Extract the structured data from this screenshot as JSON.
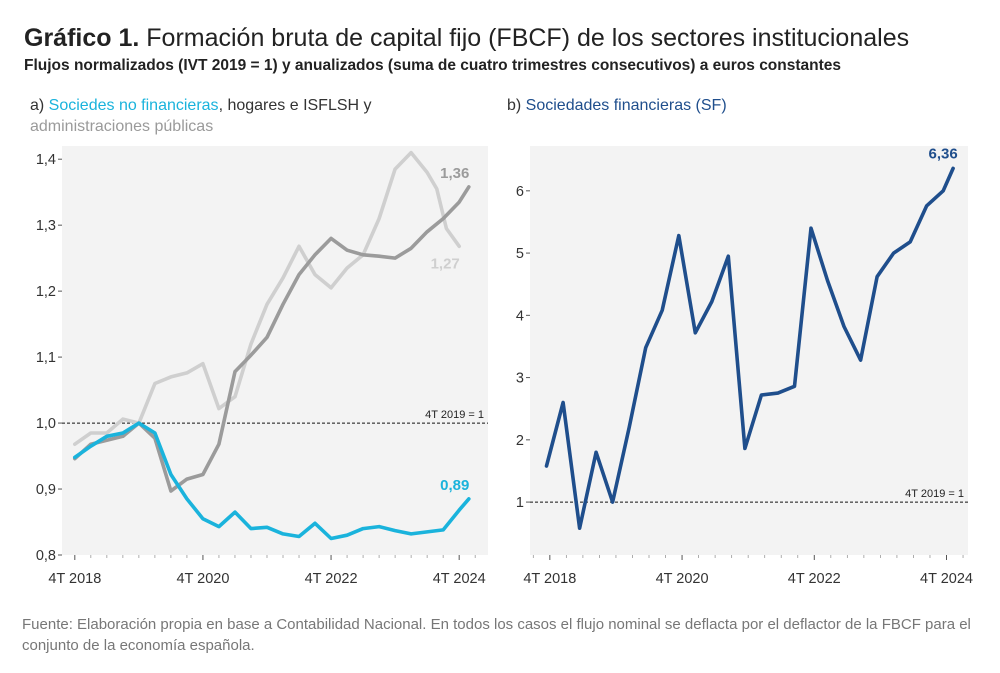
{
  "header": {
    "title_bold": "Gráfico 1.",
    "title_rest": " Formación bruta de capital fijo (FBCF) de los sectores institucionales",
    "subtitle": "Flujos normalizados (IVT 2019 = 1) y anualizados (suma de cuatro trimestres consecutivos) a euros constantes"
  },
  "panel_a": {
    "prefix": "a) ",
    "series_label_1": "Sociedes no financieras",
    "mid": ", hogares e ISFLSH y",
    "series_label_3": "administraciones públicas"
  },
  "panel_b": {
    "prefix": "b) ",
    "series_label": "Sociedades financieras (SF)"
  },
  "source": "Fuente: Elaboración propia en base a Contabilidad Nacional. En todos los casos el flujo nominal se deflacta por el deflactor de la FBCF para el conjunto de la economía española.",
  "colors": {
    "snf": "#1ab3dc",
    "hogares": "#9b9b9b",
    "aapp": "#cfcfcf",
    "sf": "#1f4e8c",
    "panel_bg": "#f3f3f3"
  },
  "chart_data": [
    {
      "type": "line",
      "id": "a",
      "ylim": [
        0.8,
        1.42
      ],
      "yticks": [
        0.8,
        0.9,
        1.0,
        1.1,
        1.2,
        1.3,
        1.4
      ],
      "ytick_labels": [
        "0,8",
        "0,9",
        "1,0",
        "1,1",
        "1,2",
        "1,3",
        "1,4"
      ],
      "xlim": [
        -0.8,
        25.8
      ],
      "xticks": [
        0,
        8,
        16,
        24
      ],
      "xtick_labels": [
        "4T 2018",
        "4T 2020",
        "4T 2022",
        "4T 2024"
      ],
      "x": [
        0,
        1,
        2,
        3,
        4,
        5,
        6,
        7,
        8,
        9,
        10,
        11,
        12,
        13,
        14,
        15,
        16,
        17,
        18,
        19,
        20,
        21,
        22,
        23,
        24
      ],
      "reference": {
        "y": 1.0,
        "label": "4T 2019 = 1"
      },
      "series": [
        {
          "name": "administraciones públicas",
          "color_key": "aapp",
          "values": [
            0.968,
            0.985,
            0.985,
            1.006,
            1.0,
            1.06,
            1.07,
            1.076,
            1.09,
            1.022,
            1.04,
            1.12,
            1.18,
            1.22,
            1.268,
            1.225,
            1.205,
            1.235,
            1.255,
            1.31,
            1.385,
            1.41,
            1.38,
            1.355,
            1.295,
            1.268
          ],
          "x": [
            0,
            1,
            2,
            3,
            4,
            5,
            6,
            7,
            8,
            9,
            10,
            11,
            12,
            13,
            14,
            15,
            16,
            17,
            18,
            19,
            20,
            21,
            22,
            22.6,
            23.2,
            24
          ],
          "end_label": "1,27"
        },
        {
          "name": "hogares e ISFLSH",
          "color_key": "hogares",
          "values": [
            0.946,
            0.968,
            0.974,
            0.98,
            1.0,
            0.977,
            0.897,
            0.915,
            0.922,
            0.968,
            1.078,
            1.103,
            1.13,
            1.18,
            1.225,
            1.255,
            1.28,
            1.262,
            1.255,
            1.253,
            1.25,
            1.265,
            1.29,
            1.31,
            1.335,
            1.358
          ],
          "x": [
            0,
            1,
            2,
            3,
            4,
            5,
            6,
            7,
            8,
            9,
            10,
            11,
            12,
            13,
            14,
            15,
            16,
            17,
            18,
            19,
            20,
            21,
            22,
            23,
            24,
            24.6
          ],
          "end_label": "1,36"
        },
        {
          "name": "Sociedes no financieras",
          "color_key": "snf",
          "values": [
            0.948,
            0.965,
            0.98,
            0.985,
            1.0,
            0.985,
            0.922,
            0.885,
            0.855,
            0.843,
            0.865,
            0.84,
            0.842,
            0.832,
            0.828,
            0.848,
            0.825,
            0.83,
            0.84,
            0.843,
            0.837,
            0.832,
            0.835,
            0.838,
            0.868,
            0.885
          ],
          "x": [
            0,
            1,
            2,
            3,
            4,
            5,
            6,
            7,
            8,
            9,
            10,
            11,
            12,
            13,
            14,
            15,
            16,
            17,
            18,
            19,
            20,
            21,
            22,
            23,
            24,
            24.6
          ],
          "end_label": "0,89"
        }
      ]
    },
    {
      "type": "line",
      "id": "b",
      "ylim": [
        0.15,
        6.72
      ],
      "yticks": [
        1,
        2,
        3,
        4,
        5,
        6
      ],
      "ytick_labels": [
        "1",
        "2",
        "3",
        "4",
        "5",
        "6"
      ],
      "xlim": [
        -1.2,
        25.3
      ],
      "xticks": [
        0,
        8,
        16,
        24
      ],
      "xtick_labels": [
        "4T 2018",
        "4T 2020",
        "4T 2022",
        "4T 2024"
      ],
      "reference": {
        "y": 1.0,
        "label": "4T 2019 = 1"
      },
      "series": [
        {
          "name": "Sociedades financieras (SF)",
          "color_key": "sf",
          "x": [
            -0.2,
            0.8,
            1.8,
            2.8,
            3.8,
            4.8,
            5.8,
            6.8,
            7.8,
            8.8,
            9.8,
            10.8,
            11.8,
            12.8,
            13.8,
            14.8,
            15.8,
            16.8,
            17.8,
            18.8,
            19.8,
            20.8,
            21.8,
            22.8,
            23.8,
            24.4
          ],
          "values": [
            1.58,
            2.6,
            0.58,
            1.8,
            1.0,
            2.2,
            3.48,
            4.08,
            5.28,
            3.72,
            4.22,
            4.95,
            1.86,
            2.72,
            2.75,
            2.86,
            5.4,
            4.56,
            3.82,
            3.28,
            4.62,
            5.0,
            5.18,
            5.76,
            6.0,
            6.36
          ],
          "end_label": "6,36"
        }
      ]
    }
  ]
}
